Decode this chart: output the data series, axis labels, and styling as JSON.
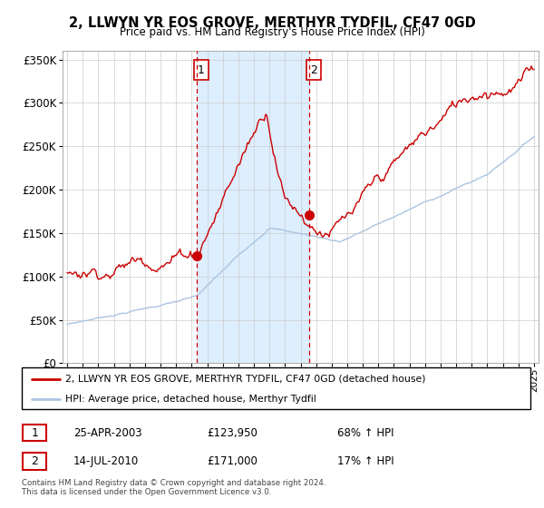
{
  "title": "2, LLWYN YR EOS GROVE, MERTHYR TYDFIL, CF47 0GD",
  "subtitle": "Price paid vs. HM Land Registry's House Price Index (HPI)",
  "legend_entry1": "2, LLWYN YR EOS GROVE, MERTHYR TYDFIL, CF47 0GD (detached house)",
  "legend_entry2": "HPI: Average price, detached house, Merthyr Tydfil",
  "sale1_label": "1",
  "sale1_date": "25-APR-2003",
  "sale1_price": "£123,950",
  "sale1_hpi": "68% ↑ HPI",
  "sale2_label": "2",
  "sale2_date": "14-JUL-2010",
  "sale2_price": "£171,000",
  "sale2_hpi": "17% ↑ HPI",
  "footnote": "Contains HM Land Registry data © Crown copyright and database right 2024.\nThis data is licensed under the Open Government Licence v3.0.",
  "sale1_x": 2003.32,
  "sale1_y": 123950,
  "sale2_x": 2010.54,
  "sale2_y": 171000,
  "vline1_x": 2003.32,
  "vline2_x": 2010.54,
  "hpi_color": "#aac4e0",
  "price_color": "#cc0000",
  "vline_color": "#cc0000",
  "bg_between_color": "#ddeeff",
  "ylim": [
    0,
    360000
  ],
  "xlim_start": 1994.7,
  "xlim_end": 2025.3
}
